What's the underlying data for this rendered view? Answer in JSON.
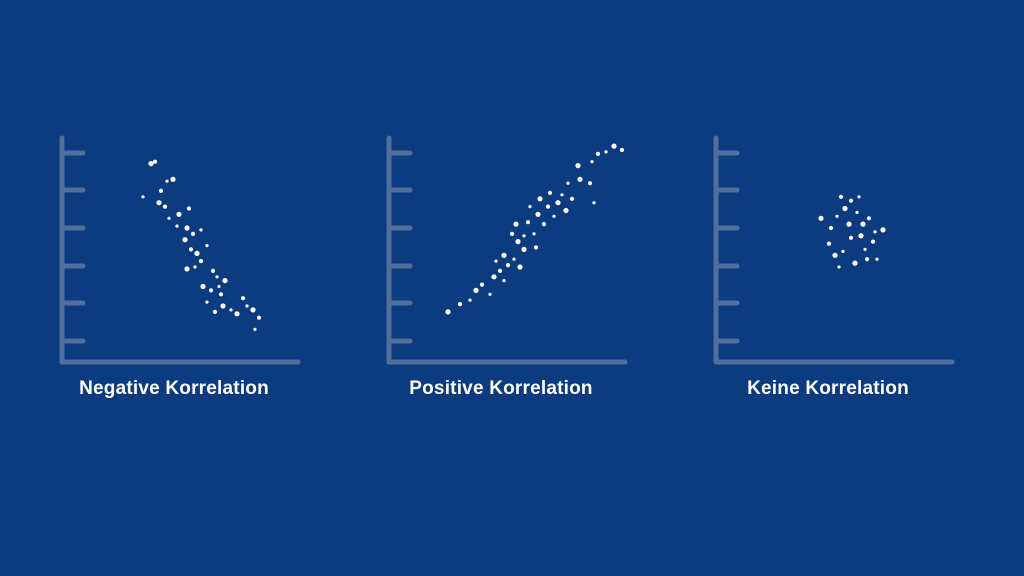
{
  "colors": {
    "background": "#0d3b80",
    "axis": "#4f6f9e",
    "point": "#ffffff",
    "text": "#ffffff"
  },
  "chart_data": [
    {
      "type": "scatter",
      "title": "Negative Korrelation",
      "xlim": [
        0,
        100
      ],
      "ylim": [
        0,
        100
      ],
      "grid": false,
      "legend": "none",
      "points": [
        [
          27,
          93
        ],
        [
          29,
          94
        ],
        [
          35,
          84
        ],
        [
          38,
          85
        ],
        [
          32,
          79
        ],
        [
          23,
          76
        ],
        [
          31,
          73
        ],
        [
          34,
          71
        ],
        [
          36,
          65
        ],
        [
          41,
          67
        ],
        [
          46,
          70
        ],
        [
          40,
          61
        ],
        [
          45,
          60
        ],
        [
          48,
          57
        ],
        [
          52,
          59
        ],
        [
          44,
          54
        ],
        [
          47,
          49
        ],
        [
          55,
          51
        ],
        [
          50,
          47
        ],
        [
          52,
          43
        ],
        [
          49,
          40
        ],
        [
          45,
          39
        ],
        [
          58,
          38
        ],
        [
          60,
          35
        ],
        [
          53,
          30
        ],
        [
          57,
          28
        ],
        [
          61,
          30
        ],
        [
          64,
          33
        ],
        [
          62,
          26
        ],
        [
          55,
          22
        ],
        [
          63,
          20
        ],
        [
          59,
          17
        ],
        [
          67,
          18
        ],
        [
          70,
          16
        ],
        [
          73,
          24
        ],
        [
          75,
          20
        ],
        [
          78,
          18
        ],
        [
          81,
          14
        ],
        [
          79,
          8
        ]
      ]
    },
    {
      "type": "scatter",
      "title": "Positive Korrelation",
      "xlim": [
        0,
        100
      ],
      "ylim": [
        0,
        100
      ],
      "grid": false,
      "legend": "none",
      "points": [
        [
          12,
          17
        ],
        [
          18,
          21
        ],
        [
          23,
          23
        ],
        [
          26,
          28
        ],
        [
          29,
          31
        ],
        [
          33,
          26
        ],
        [
          35,
          35
        ],
        [
          38,
          38
        ],
        [
          36,
          43
        ],
        [
          40,
          46
        ],
        [
          42,
          41
        ],
        [
          45,
          44
        ],
        [
          47,
          53
        ],
        [
          44,
          57
        ],
        [
          50,
          56
        ],
        [
          46,
          62
        ],
        [
          52,
          63
        ],
        [
          55,
          57
        ],
        [
          57,
          67
        ],
        [
          60,
          62
        ],
        [
          53,
          71
        ],
        [
          58,
          75
        ],
        [
          62,
          71
        ],
        [
          65,
          66
        ],
        [
          67,
          73
        ],
        [
          63,
          78
        ],
        [
          69,
          77
        ],
        [
          71,
          69
        ],
        [
          74,
          75
        ],
        [
          72,
          83
        ],
        [
          78,
          85
        ],
        [
          83,
          83
        ],
        [
          84,
          94
        ],
        [
          77,
          92
        ],
        [
          87,
          98
        ],
        [
          91,
          99
        ],
        [
          95,
          102
        ],
        [
          99,
          100
        ],
        [
          85,
          73
        ],
        [
          50,
          49
        ],
        [
          56,
          50
        ],
        [
          40,
          33
        ],
        [
          48,
          40
        ]
      ]
    },
    {
      "type": "scatter",
      "title": "Keine Korrelation",
      "xlim": [
        0,
        100
      ],
      "ylim": [
        0,
        100
      ],
      "grid": false,
      "legend": "none",
      "points": [
        [
          35,
          65
        ],
        [
          40,
          60
        ],
        [
          43,
          66
        ],
        [
          47,
          70
        ],
        [
          50,
          74
        ],
        [
          53,
          68
        ],
        [
          56,
          62
        ],
        [
          59,
          65
        ],
        [
          62,
          58
        ],
        [
          66,
          59
        ],
        [
          61,
          53
        ],
        [
          57,
          49
        ],
        [
          55,
          56
        ],
        [
          50,
          55
        ],
        [
          46,
          48
        ],
        [
          42,
          46
        ],
        [
          39,
          52
        ],
        [
          44,
          40
        ],
        [
          52,
          42
        ],
        [
          58,
          44
        ],
        [
          63,
          44
        ],
        [
          49,
          62
        ],
        [
          45,
          76
        ],
        [
          54,
          76
        ]
      ]
    }
  ]
}
